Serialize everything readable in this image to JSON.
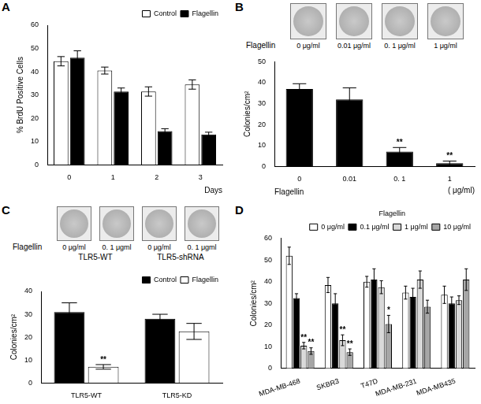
{
  "chart_data": [
    {
      "panel": "A",
      "type": "bar",
      "y_label": "% BrdU Positive Cells",
      "x_label": "Days",
      "categories": [
        "0",
        "1",
        "2",
        "3"
      ],
      "series": [
        {
          "name": "Control",
          "color": "#ffffff",
          "values": [
            44.5,
            40.5,
            31.5,
            34.5
          ],
          "errors": [
            2,
            1.5,
            2,
            2
          ]
        },
        {
          "name": "Flagellin",
          "color": "#000000",
          "values": [
            46,
            31.5,
            14.5,
            13
          ],
          "errors": [
            3,
            1.5,
            1,
            1
          ]
        }
      ],
      "ylim": [
        0,
        60
      ],
      "yticks": [
        0,
        10,
        20,
        30,
        40,
        50,
        60
      ],
      "legend": "top right",
      "grid": false
    },
    {
      "panel": "B",
      "type": "bar",
      "plates": {
        "row_label": "Flagellin",
        "labels": [
          "0 μg/ml",
          "0.01 μg/ml",
          "0. 1 μg/ml",
          "1 μg/ml"
        ]
      },
      "y_label": "Colonies/cm²",
      "x_label": "Flagellin",
      "x_unit": "( μg/ml)",
      "categories": [
        "0",
        "0.01",
        "0. 1",
        "1"
      ],
      "values": [
        37,
        32,
        7,
        1.5
      ],
      "errors": [
        2.5,
        5.5,
        2,
        1
      ],
      "significance": [
        null,
        null,
        "**",
        "**"
      ],
      "color": "#000000",
      "ylim": [
        0,
        50
      ],
      "yticks": [
        0,
        10,
        20,
        30,
        40,
        50
      ],
      "grid": false
    },
    {
      "panel": "C",
      "type": "bar",
      "plates": {
        "row_label": "Flagellin",
        "labels": [
          "0 μg/ml",
          "0. 1 μgml",
          "0 μg/ml",
          "0. 1 μgml"
        ],
        "groups": [
          "TLR5-WT",
          "TLR5-shRNA"
        ]
      },
      "y_label": "Colonies/cm²",
      "categories": [
        "TLR5-WT",
        "TLR5-KD"
      ],
      "series": [
        {
          "name": "Control",
          "color": "#000000",
          "values": [
            31,
            28
          ],
          "errors": [
            4,
            2
          ]
        },
        {
          "name": "Flagellin",
          "color": "#ffffff",
          "values": [
            7,
            22.5
          ],
          "errors": [
            1,
            3.5
          ],
          "significance": [
            "**",
            null
          ]
        }
      ],
      "ylim": [
        0,
        40
      ],
      "yticks": [
        0,
        10,
        20,
        30,
        40
      ],
      "legend": "top right",
      "grid": false
    },
    {
      "panel": "D",
      "type": "bar",
      "y_label": "Colonies/cm²",
      "legend_title": "Flagellin",
      "categories": [
        "MDA-MB-468",
        "SKBR3",
        "T47D",
        "MDA-MB-231",
        "MDA-MB435"
      ],
      "series": [
        {
          "name": "0 μg/ml",
          "color": "#ffffff",
          "values": [
            52,
            38.5,
            40,
            35,
            34
          ],
          "errors": [
            4,
            3.5,
            2.5,
            3,
            4
          ]
        },
        {
          "name": "0.1 μg/ml",
          "color": "#000000",
          "values": [
            32.5,
            30,
            41,
            33,
            30
          ],
          "errors": [
            2,
            4.5,
            5,
            4,
            3
          ]
        },
        {
          "name": "1 μg/ml",
          "color": "#d9d9d9",
          "values": [
            10.5,
            13,
            37.5,
            41,
            31.5
          ],
          "errors": [
            1.5,
            2.5,
            3,
            4,
            2
          ],
          "significance": [
            "**",
            "**",
            null,
            null,
            null
          ]
        },
        {
          "name": "10 μg/ml",
          "color": "#a6a6a6",
          "values": [
            8,
            7.5,
            20.5,
            28.5,
            41
          ],
          "errors": [
            1.5,
            1.5,
            4,
            3,
            5
          ],
          "significance": [
            "**",
            "**",
            "*",
            null,
            null
          ]
        }
      ],
      "ylim": [
        0,
        60
      ],
      "yticks": [
        0,
        10,
        20,
        30,
        40,
        50,
        60
      ],
      "legend": "top right",
      "grid": false
    }
  ]
}
